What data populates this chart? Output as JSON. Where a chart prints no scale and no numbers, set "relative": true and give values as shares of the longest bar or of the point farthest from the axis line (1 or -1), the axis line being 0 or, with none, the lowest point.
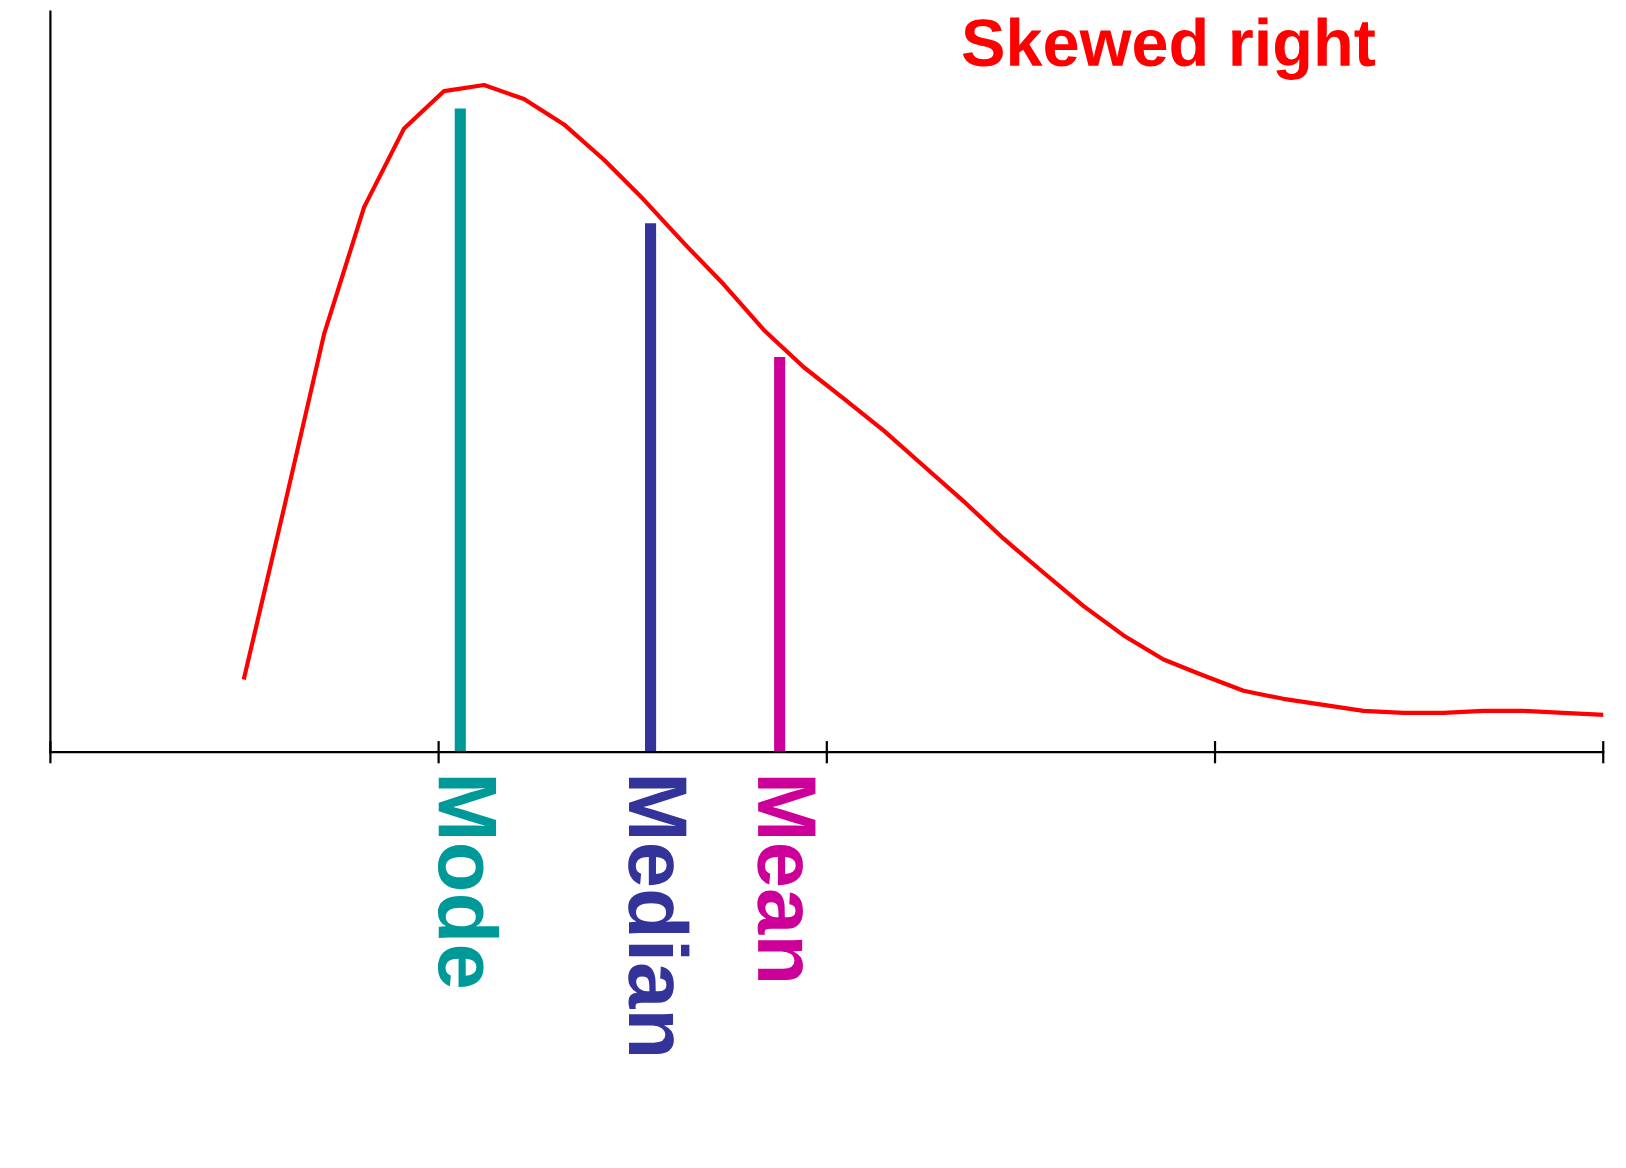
{
  "chart_data": {
    "type": "line",
    "title": "Skewed right",
    "relative": true,
    "categories": [
      null,
      null,
      null,
      null,
      null,
      null,
      null,
      null,
      null,
      null,
      null,
      null,
      null,
      null,
      null,
      null,
      null,
      null,
      null,
      null,
      null,
      null,
      null,
      null,
      null,
      null,
      null,
      null,
      null,
      null,
      null,
      null,
      null,
      null,
      null
    ],
    "series": [
      {
        "color": "#ff0000",
        "values": [
          0.112,
          0.367,
          0.627,
          0.817,
          0.935,
          0.991,
          1.0,
          0.979,
          0.941,
          0.888,
          0.828,
          0.763,
          0.701,
          0.633,
          0.577,
          0.53,
          0.482,
          0.429,
          0.376,
          0.32,
          0.269,
          0.219,
          0.175,
          0.139,
          0.115,
          0.092,
          0.08,
          0.071,
          0.062,
          0.059,
          0.059,
          0.062,
          0.062,
          0.059,
          0.056
        ]
      }
    ],
    "annotations": [
      "Mode",
      "Median",
      "Mean"
    ]
  }
}
